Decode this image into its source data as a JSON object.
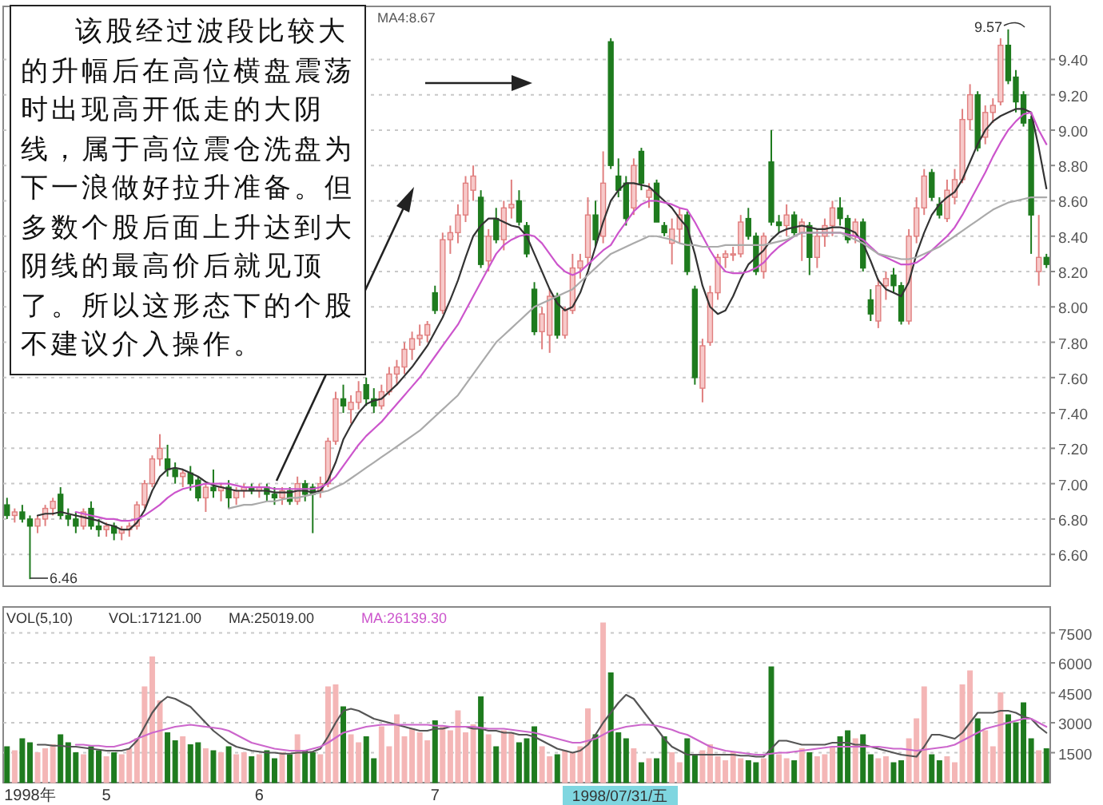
{
  "chart_data": [
    {
      "type": "candlestick",
      "categories": [
        null,
        null,
        null,
        null,
        null,
        null,
        null,
        null,
        null,
        null,
        null,
        null,
        null,
        null,
        null,
        null,
        null,
        null,
        null,
        null,
        null,
        null,
        null,
        null,
        null,
        null,
        null,
        null,
        null,
        null,
        null,
        null,
        null,
        null,
        null,
        null,
        null,
        null,
        null,
        null,
        null,
        null,
        null,
        null,
        null,
        null,
        null,
        null,
        null,
        null,
        null,
        null,
        null,
        null,
        null,
        null,
        null,
        null,
        null,
        null,
        null,
        null,
        null,
        null,
        null,
        null,
        null,
        null,
        null,
        null,
        null,
        null,
        null,
        null,
        null,
        null,
        null,
        null,
        null,
        null,
        null,
        null,
        null,
        null,
        null,
        null,
        null,
        null,
        null,
        null,
        null,
        null,
        null,
        null,
        null,
        null,
        null,
        null,
        null,
        null,
        null,
        null,
        null,
        null,
        null,
        null,
        null,
        null,
        null,
        null,
        null,
        null,
        null,
        null,
        null,
        null,
        null,
        null,
        null,
        null,
        null,
        null,
        null,
        null,
        null,
        null,
        null,
        null,
        null,
        null,
        null,
        null,
        null,
        null,
        null,
        null,
        null
      ],
      "ohlc": [
        [
          6.88,
          6.92,
          6.8,
          6.82
        ],
        [
          6.82,
          6.86,
          6.78,
          6.84
        ],
        [
          6.84,
          6.88,
          6.78,
          6.8
        ],
        [
          6.8,
          6.82,
          6.46,
          6.76
        ],
        [
          6.76,
          6.82,
          6.72,
          6.8
        ],
        [
          6.8,
          6.88,
          6.76,
          6.86
        ],
        [
          6.86,
          6.92,
          6.82,
          6.9
        ],
        [
          6.94,
          6.98,
          6.8,
          6.82
        ],
        [
          6.82,
          6.86,
          6.76,
          6.8
        ],
        [
          6.8,
          6.84,
          6.72,
          6.76
        ],
        [
          6.76,
          6.86,
          6.74,
          6.84
        ],
        [
          6.86,
          6.9,
          6.74,
          6.76
        ],
        [
          6.76,
          6.8,
          6.7,
          6.74
        ],
        [
          6.74,
          6.78,
          6.7,
          6.76
        ],
        [
          6.76,
          6.78,
          6.68,
          6.72
        ],
        [
          6.72,
          6.76,
          6.68,
          6.74
        ],
        [
          6.74,
          6.78,
          6.7,
          6.76
        ],
        [
          6.76,
          6.9,
          6.74,
          6.88
        ],
        [
          6.88,
          7.02,
          6.86,
          7.0
        ],
        [
          7.0,
          7.16,
          6.98,
          7.14
        ],
        [
          7.14,
          7.28,
          7.1,
          7.2
        ],
        [
          7.14,
          7.22,
          7.04,
          7.08
        ],
        [
          7.08,
          7.12,
          7.0,
          7.04
        ],
        [
          7.04,
          7.08,
          6.98,
          7.06
        ],
        [
          7.06,
          7.1,
          6.96,
          7.0
        ],
        [
          7.02,
          7.04,
          6.9,
          6.92
        ],
        [
          6.92,
          7.0,
          6.84,
          6.98
        ],
        [
          6.98,
          7.08,
          6.92,
          6.96
        ],
        [
          6.96,
          7.0,
          6.9,
          6.98
        ],
        [
          6.98,
          7.02,
          6.86,
          6.92
        ],
        [
          6.92,
          6.98,
          6.88,
          6.96
        ],
        [
          6.96,
          7.0,
          6.92,
          6.98
        ],
        [
          6.98,
          7.0,
          6.94,
          6.96
        ],
        [
          6.96,
          7.0,
          6.92,
          6.98
        ],
        [
          6.98,
          7.0,
          6.9,
          6.94
        ],
        [
          6.94,
          6.98,
          6.88,
          6.92
        ],
        [
          6.92,
          6.98,
          6.88,
          6.96
        ],
        [
          6.96,
          6.98,
          6.88,
          6.9
        ],
        [
          6.9,
          7.04,
          6.88,
          7.0
        ],
        [
          7.0,
          7.02,
          6.9,
          6.94
        ],
        [
          6.98,
          7.0,
          6.72,
          6.94
        ],
        [
          6.96,
          7.04,
          6.92,
          7.0
        ],
        [
          7.0,
          7.26,
          6.98,
          7.24
        ],
        [
          7.24,
          7.52,
          7.22,
          7.48
        ],
        [
          7.48,
          7.56,
          7.4,
          7.44
        ],
        [
          7.42,
          7.5,
          7.34,
          7.46
        ],
        [
          7.46,
          7.58,
          7.42,
          7.52
        ],
        [
          7.56,
          7.6,
          7.44,
          7.48
        ],
        [
          7.48,
          7.54,
          7.4,
          7.44
        ],
        [
          7.44,
          7.56,
          7.42,
          7.52
        ],
        [
          7.52,
          7.66,
          7.5,
          7.62
        ],
        [
          7.62,
          7.7,
          7.56,
          7.66
        ],
        [
          7.66,
          7.8,
          7.62,
          7.76
        ],
        [
          7.76,
          7.86,
          7.7,
          7.82
        ],
        [
          7.82,
          7.9,
          7.78,
          7.84
        ],
        [
          7.84,
          7.92,
          7.8,
          7.9
        ],
        [
          8.08,
          8.12,
          7.96,
          7.98
        ],
        [
          7.98,
          8.42,
          7.96,
          8.38
        ],
        [
          8.38,
          8.46,
          8.3,
          8.42
        ],
        [
          8.42,
          8.58,
          8.36,
          8.52
        ],
        [
          8.52,
          8.74,
          8.48,
          8.7
        ],
        [
          8.66,
          8.8,
          8.6,
          8.74
        ],
        [
          8.62,
          8.66,
          8.22,
          8.24
        ],
        [
          8.26,
          8.44,
          8.2,
          8.4
        ],
        [
          8.5,
          8.56,
          8.36,
          8.38
        ],
        [
          8.38,
          8.6,
          8.32,
          8.56
        ],
        [
          8.56,
          8.72,
          8.5,
          8.58
        ],
        [
          8.6,
          8.66,
          8.46,
          8.48
        ],
        [
          8.46,
          8.48,
          8.28,
          8.3
        ],
        [
          8.1,
          8.14,
          7.84,
          7.86
        ],
        [
          7.86,
          8.0,
          7.76,
          7.96
        ],
        [
          7.84,
          8.1,
          7.74,
          8.06
        ],
        [
          8.06,
          8.08,
          7.82,
          7.84
        ],
        [
          7.84,
          8.0,
          7.82,
          7.98
        ],
        [
          7.98,
          8.3,
          7.96,
          8.22
        ],
        [
          8.22,
          8.3,
          8.16,
          8.26
        ],
        [
          8.28,
          8.62,
          8.24,
          8.52
        ],
        [
          8.52,
          8.6,
          8.34,
          8.38
        ],
        [
          8.4,
          8.88,
          8.36,
          8.7
        ],
        [
          9.5,
          9.52,
          8.78,
          8.8
        ],
        [
          8.74,
          8.84,
          8.62,
          8.66
        ],
        [
          8.7,
          8.74,
          8.46,
          8.5
        ],
        [
          8.56,
          8.84,
          8.52,
          8.8
        ],
        [
          8.88,
          8.9,
          8.66,
          8.7
        ],
        [
          8.62,
          8.7,
          8.56,
          8.66
        ],
        [
          8.7,
          8.72,
          8.48,
          8.48
        ],
        [
          8.46,
          8.48,
          8.4,
          8.42
        ],
        [
          8.36,
          8.5,
          8.24,
          8.44
        ],
        [
          8.44,
          8.56,
          8.36,
          8.52
        ],
        [
          8.52,
          8.54,
          8.18,
          8.2
        ],
        [
          8.1,
          8.12,
          7.56,
          7.6
        ],
        [
          7.54,
          7.82,
          7.46,
          7.78
        ],
        [
          7.8,
          8.12,
          7.78,
          8.08
        ],
        [
          8.08,
          8.3,
          8.04,
          8.28
        ],
        [
          8.28,
          8.32,
          8.22,
          8.3
        ],
        [
          8.3,
          8.34,
          8.26,
          8.3
        ],
        [
          8.3,
          8.52,
          8.28,
          8.48
        ],
        [
          8.5,
          8.56,
          8.38,
          8.4
        ],
        [
          8.4,
          8.42,
          8.18,
          8.2
        ],
        [
          8.2,
          8.42,
          8.16,
          8.4
        ],
        [
          8.82,
          9.0,
          8.46,
          8.48
        ],
        [
          8.48,
          8.52,
          8.42,
          8.46
        ],
        [
          8.46,
          8.58,
          8.4,
          8.52
        ],
        [
          8.52,
          8.54,
          8.4,
          8.42
        ],
        [
          8.42,
          8.5,
          8.26,
          8.48
        ],
        [
          8.46,
          8.48,
          8.18,
          8.28
        ],
        [
          8.28,
          8.44,
          8.22,
          8.4
        ],
        [
          8.4,
          8.5,
          8.34,
          8.46
        ],
        [
          8.46,
          8.6,
          8.4,
          8.56
        ],
        [
          8.56,
          8.62,
          8.46,
          8.5
        ],
        [
          8.5,
          8.52,
          8.36,
          8.38
        ],
        [
          8.4,
          8.5,
          8.36,
          8.48
        ],
        [
          8.48,
          8.5,
          8.2,
          8.22
        ],
        [
          8.04,
          8.1,
          7.92,
          7.96
        ],
        [
          7.92,
          8.16,
          7.88,
          8.12
        ],
        [
          8.12,
          8.2,
          8.04,
          8.16
        ],
        [
          8.18,
          8.22,
          8.08,
          8.12
        ],
        [
          8.12,
          8.14,
          7.9,
          7.92
        ],
        [
          7.92,
          8.44,
          7.9,
          8.4
        ],
        [
          8.4,
          8.62,
          8.36,
          8.56
        ],
        [
          8.56,
          8.78,
          8.52,
          8.74
        ],
        [
          8.76,
          8.78,
          8.6,
          8.62
        ],
        [
          8.58,
          8.62,
          8.5,
          8.52
        ],
        [
          8.5,
          8.72,
          8.48,
          8.66
        ],
        [
          8.62,
          8.78,
          8.58,
          8.72
        ],
        [
          8.72,
          9.12,
          8.7,
          9.06
        ],
        [
          9.06,
          9.26,
          9.0,
          9.2
        ],
        [
          9.2,
          9.22,
          8.88,
          8.9
        ],
        [
          8.96,
          9.14,
          8.92,
          9.1
        ],
        [
          9.1,
          9.18,
          9.04,
          9.14
        ],
        [
          9.16,
          9.52,
          9.14,
          9.48
        ],
        [
          9.48,
          9.57,
          9.26,
          9.28
        ],
        [
          9.3,
          9.34,
          9.1,
          9.16
        ],
        [
          9.2,
          9.22,
          9.02,
          9.04
        ],
        [
          9.06,
          9.08,
          8.3,
          8.52
        ],
        [
          8.2,
          8.52,
          8.12,
          8.28
        ],
        [
          8.28,
          8.3,
          8.22,
          8.24
        ]
      ],
      "series": [
        {
          "type": "line",
          "color": "#333333",
          "values": [
            null,
            null,
            null,
            null,
            6.82,
            6.83,
            6.83,
            6.84,
            6.83,
            6.82,
            6.81,
            6.8,
            6.79,
            6.77,
            6.76,
            6.74,
            6.74,
            6.78,
            6.85,
            6.96,
            7.04,
            7.08,
            7.09,
            7.08,
            7.06,
            7.04,
            7.01,
            6.99,
            6.98,
            6.97,
            6.96,
            6.96,
            6.96,
            6.96,
            6.96,
            6.95,
            6.95,
            6.95,
            6.96,
            6.96,
            6.95,
            6.96,
            7.02,
            7.12,
            7.25,
            7.33,
            7.4,
            7.45,
            7.47,
            7.48,
            7.52,
            7.56,
            7.61,
            7.66,
            7.72,
            7.78,
            7.86,
            7.94,
            8.04,
            8.15,
            8.28,
            8.4,
            8.46,
            8.5,
            8.5,
            8.48,
            8.46,
            8.45,
            8.4,
            8.3,
            8.2,
            8.1,
            8.02,
            7.98,
            8.0,
            8.08,
            8.2,
            8.34,
            8.48,
            8.6,
            8.66,
            8.7,
            8.7,
            8.69,
            8.68,
            8.64,
            8.6,
            8.56,
            8.5,
            8.45,
            8.3,
            8.12,
            8.0,
            7.96,
            7.98,
            8.06,
            8.16,
            8.24,
            8.28,
            8.32,
            8.38,
            8.42,
            8.44,
            8.45,
            8.46,
            8.45,
            8.44,
            8.44,
            8.45,
            8.45,
            8.44,
            8.42,
            8.36,
            8.26,
            8.15,
            8.1,
            8.08,
            8.06,
            8.14,
            8.3,
            8.42,
            8.52,
            8.58,
            8.62,
            8.65,
            8.72,
            8.82,
            8.92,
            9.0,
            9.05,
            9.08,
            9.1,
            9.12,
            9.12,
            9.1,
            8.9,
            8.67
          ]
        },
        {
          "type": "line",
          "color": "#cc55cc",
          "values": [
            null,
            null,
            null,
            null,
            null,
            null,
            null,
            null,
            null,
            6.84,
            6.83,
            6.82,
            6.81,
            6.8,
            6.8,
            6.79,
            6.79,
            6.8,
            6.82,
            6.85,
            6.88,
            6.92,
            6.95,
            6.97,
            6.98,
            6.99,
            7.0,
            7.0,
            7.0,
            7.0,
            6.99,
            6.98,
            6.98,
            6.98,
            6.98,
            6.97,
            6.97,
            6.97,
            6.97,
            6.97,
            6.97,
            6.98,
            7.0,
            7.04,
            7.1,
            7.16,
            7.22,
            7.27,
            7.31,
            7.35,
            7.4,
            7.45,
            7.5,
            7.55,
            7.6,
            7.66,
            7.72,
            7.78,
            7.84,
            7.9,
            7.98,
            8.06,
            8.14,
            8.22,
            8.3,
            8.35,
            8.38,
            8.4,
            8.41,
            8.4,
            8.36,
            8.3,
            8.24,
            8.2,
            8.18,
            8.2,
            8.24,
            8.28,
            8.32,
            8.35,
            8.42,
            8.48,
            8.54,
            8.58,
            8.6,
            8.6,
            8.59,
            8.58,
            8.56,
            8.55,
            8.48,
            8.4,
            8.32,
            8.25,
            8.2,
            8.19,
            8.19,
            8.2,
            8.22,
            8.25,
            8.3,
            8.34,
            8.37,
            8.4,
            8.42,
            8.42,
            8.42,
            8.42,
            8.42,
            8.42,
            8.41,
            8.4,
            8.38,
            8.34,
            8.3,
            8.28,
            8.26,
            8.24,
            8.24,
            8.25,
            8.28,
            8.32,
            8.36,
            8.4,
            8.45,
            8.52,
            8.6,
            8.68,
            8.76,
            8.85,
            8.93,
            9.0,
            9.05,
            9.09,
            9.1,
            9.0,
            8.92
          ]
        },
        {
          "type": "line",
          "color": "#aaaaaa",
          "values": [
            null,
            null,
            null,
            null,
            null,
            null,
            null,
            null,
            null,
            null,
            null,
            null,
            null,
            null,
            null,
            null,
            null,
            null,
            null,
            null,
            null,
            null,
            null,
            null,
            null,
            null,
            null,
            null,
            null,
            6.86,
            6.87,
            6.88,
            6.88,
            6.89,
            6.9,
            6.9,
            6.91,
            6.92,
            6.92,
            6.93,
            6.94,
            6.95,
            6.96,
            6.98,
            7.0,
            7.03,
            7.06,
            7.09,
            7.12,
            7.15,
            7.18,
            7.21,
            7.24,
            7.27,
            7.3,
            7.34,
            7.38,
            7.42,
            7.46,
            7.5,
            7.56,
            7.62,
            7.68,
            7.74,
            7.8,
            7.84,
            7.88,
            7.92,
            7.96,
            8.0,
            8.02,
            8.04,
            8.06,
            8.08,
            8.1,
            8.14,
            8.18,
            8.22,
            8.26,
            8.3,
            8.32,
            8.34,
            8.36,
            8.38,
            8.4,
            8.4,
            8.39,
            8.38,
            8.36,
            8.35,
            8.35,
            8.34,
            8.34,
            8.34,
            8.35,
            8.35,
            8.35,
            8.35,
            8.35,
            8.35,
            8.36,
            8.37,
            8.38,
            8.4,
            8.42,
            8.42,
            8.42,
            8.42,
            8.42,
            8.42,
            8.4,
            8.38,
            8.36,
            8.33,
            8.3,
            8.29,
            8.28,
            8.27,
            8.27,
            8.28,
            8.3,
            8.32,
            8.34,
            8.37,
            8.4,
            8.43,
            8.46,
            8.49,
            8.52,
            8.55,
            8.57,
            8.59,
            8.6,
            8.61,
            8.62,
            8.62,
            8.62
          ]
        }
      ],
      "ylim": [
        6.42,
        9.7
      ],
      "yticks": [
        {
          "value": 6.6,
          "label": "6.60"
        },
        {
          "value": 6.8,
          "label": "6.80"
        },
        {
          "value": 7.0,
          "label": "7.00"
        },
        {
          "value": 7.2,
          "label": "7.20"
        },
        {
          "value": 7.4,
          "label": "7.40"
        },
        {
          "value": 7.6,
          "label": "7.60"
        },
        {
          "value": 7.8,
          "label": "7.80"
        },
        {
          "value": 8.0,
          "label": "8.00"
        },
        {
          "value": 8.2,
          "label": "8.20"
        },
        {
          "value": 8.4,
          "label": "8.40"
        },
        {
          "value": 8.6,
          "label": "8.60"
        },
        {
          "value": 8.8,
          "label": "8.80"
        },
        {
          "value": 9.0,
          "label": "9.00"
        },
        {
          "value": 9.2,
          "label": "9.20"
        },
        {
          "value": 9.4,
          "label": "9.40"
        }
      ],
      "grid": "y",
      "tick_labels": "y",
      "annotations": [
        "该股经过波段比较大的升幅后在高位横盘震荡时出现高开低走的大阴线，属于高位震仓洗盘为下一浪做好拉升准备。但多数个股后面上升达到大阴线的最高价后就见顶了。所以这形态下的个股不建议介入操作。",
        "MA4:8.67",
        "9.57",
        "6.46"
      ]
    },
    {
      "type": "bar",
      "categories": [
        null,
        null,
        null,
        "1998年",
        null,
        null,
        null,
        null,
        null,
        null,
        null,
        null,
        null,
        "5",
        null,
        null,
        null,
        null,
        null,
        null,
        null,
        null,
        null,
        null,
        null,
        null,
        null,
        null,
        null,
        null,
        null,
        null,
        null,
        "6",
        null,
        null,
        null,
        null,
        null,
        null,
        null,
        null,
        null,
        null,
        null,
        null,
        null,
        null,
        null,
        null,
        null,
        null,
        null,
        null,
        null,
        null,
        "7",
        null,
        null,
        null,
        null,
        null,
        null,
        null,
        null,
        null,
        null,
        null,
        null,
        null,
        null,
        null,
        null,
        null,
        null,
        null,
        null,
        null,
        null,
        null,
        null,
        null,
        null,
        null,
        null,
        null,
        null,
        null,
        null,
        null,
        null,
        null,
        null,
        null,
        null,
        null,
        null,
        null,
        null,
        null,
        null,
        null,
        null,
        null,
        null,
        null,
        null,
        null,
        null,
        null,
        null,
        null,
        null,
        null,
        null,
        null,
        null,
        null,
        null,
        null,
        null,
        null,
        null,
        null,
        null,
        null,
        null,
        null,
        null,
        null,
        null,
        null,
        null,
        null,
        null,
        null,
        null
      ],
      "values": [
        1800,
        1600,
        2200,
        2000,
        1500,
        1700,
        1900,
        2400,
        2000,
        1500,
        1400,
        1800,
        1600,
        1300,
        1500,
        1400,
        1700,
        2200,
        4800,
        6300,
        4100,
        2500,
        2100,
        2300,
        1900,
        2000,
        1700,
        1600,
        1500,
        1800,
        1400,
        1500,
        1300,
        1400,
        1600,
        1200,
        1500,
        1400,
        2400,
        1600,
        1500,
        1400,
        4800,
        4900,
        3800,
        2400,
        2000,
        2300,
        1200,
        2800,
        1800,
        3400,
        2300,
        2700,
        2500,
        2100,
        3100,
        2800,
        2600,
        3600,
        2500,
        2900,
        4300,
        2400,
        1800,
        2600,
        2500,
        2000,
        2200,
        2800,
        1800,
        1300,
        1400,
        1600,
        1500,
        1800,
        3700,
        2400,
        8000,
        5500,
        2500,
        2200,
        1700,
        1000,
        1200,
        1200,
        2300,
        1500,
        1000,
        2200,
        1400,
        1600,
        1900,
        1300,
        1100,
        1500,
        1200,
        1100,
        1000,
        1200,
        5800,
        1400,
        1200,
        1100,
        1700,
        1500,
        1300,
        1400,
        1800,
        2300,
        2600,
        2200,
        2400,
        1400,
        1200,
        1300,
        1000,
        1100,
        2200,
        3200,
        4800,
        1400,
        1100,
        1300,
        1000,
        4900,
        5600,
        3200,
        2600,
        1800,
        4500,
        3400,
        3000,
        4000,
        2200,
        1600,
        1700
      ],
      "colors": [
        "#1e7b1e",
        "#f4b6b6",
        "#1e7b1e",
        "#1e7b1e",
        "#f4b6b6",
        "#f4b6b6",
        "#f4b6b6",
        "#1e7b1e",
        "#1e7b1e",
        "#1e7b1e",
        "#f4b6b6",
        "#1e7b1e",
        "#1e7b1e",
        "#f4b6b6",
        "#1e7b1e",
        "#f4b6b6",
        "#f4b6b6",
        "#f4b6b6",
        "#f4b6b6",
        "#f4b6b6",
        "#f4b6b6",
        "#1e7b1e",
        "#1e7b1e",
        "#f4b6b6",
        "#1e7b1e",
        "#1e7b1e",
        "#f4b6b6",
        "#1e7b1e",
        "#f4b6b6",
        "#1e7b1e",
        "#f4b6b6",
        "#f4b6b6",
        "#1e7b1e",
        "#f4b6b6",
        "#1e7b1e",
        "#1e7b1e",
        "#f4b6b6",
        "#1e7b1e",
        "#f4b6b6",
        "#1e7b1e",
        "#1e7b1e",
        "#f4b6b6",
        "#f4b6b6",
        "#f4b6b6",
        "#1e7b1e",
        "#f4b6b6",
        "#f4b6b6",
        "#1e7b1e",
        "#1e7b1e",
        "#f4b6b6",
        "#f4b6b6",
        "#f4b6b6",
        "#f4b6b6",
        "#f4b6b6",
        "#f4b6b6",
        "#f4b6b6",
        "#1e7b1e",
        "#f4b6b6",
        "#f4b6b6",
        "#f4b6b6",
        "#f4b6b6",
        "#f4b6b6",
        "#1e7b1e",
        "#f4b6b6",
        "#1e7b1e",
        "#f4b6b6",
        "#f4b6b6",
        "#1e7b1e",
        "#1e7b1e",
        "#1e7b1e",
        "#f4b6b6",
        "#f4b6b6",
        "#1e7b1e",
        "#f4b6b6",
        "#f4b6b6",
        "#f4b6b6",
        "#f4b6b6",
        "#1e7b1e",
        "#f4b6b6",
        "#1e7b1e",
        "#1e7b1e",
        "#1e7b1e",
        "#f4b6b6",
        "#1e7b1e",
        "#f4b6b6",
        "#1e7b1e",
        "#1e7b1e",
        "#f4b6b6",
        "#f4b6b6",
        "#1e7b1e",
        "#1e7b1e",
        "#f4b6b6",
        "#f4b6b6",
        "#f4b6b6",
        "#f4b6b6",
        "#f4b6b6",
        "#f4b6b6",
        "#1e7b1e",
        "#1e7b1e",
        "#f4b6b6",
        "#1e7b1e",
        "#f4b6b6",
        "#f4b6b6",
        "#1e7b1e",
        "#f4b6b6",
        "#1e7b1e",
        "#f4b6b6",
        "#f4b6b6",
        "#f4b6b6",
        "#1e7b1e",
        "#1e7b1e",
        "#f4b6b6",
        "#1e7b1e",
        "#1e7b1e",
        "#f4b6b6",
        "#f4b6b6",
        "#1e7b1e",
        "#1e7b1e",
        "#f4b6b6",
        "#f4b6b6",
        "#f4b6b6",
        "#1e7b1e",
        "#1e7b1e",
        "#f4b6b6",
        "#f4b6b6",
        "#f4b6b6",
        "#f4b6b6",
        "#1e7b1e",
        "#f4b6b6",
        "#f4b6b6",
        "#f4b6b6",
        "#1e7b1e",
        "#1e7b1e",
        "#1e7b1e",
        "#1e7b1e",
        "#f4b6b6",
        "#1e7b1e"
      ],
      "series": [
        {
          "type": "line",
          "color": "#555555",
          "values": [
            null,
            null,
            null,
            null,
            1900,
            1900,
            1850,
            1850,
            1800,
            1800,
            1750,
            1700,
            1650,
            1600,
            1600,
            1600,
            1700,
            2100,
            2800,
            3500,
            4000,
            4300,
            4200,
            4000,
            3800,
            3400,
            3000,
            2600,
            2300,
            2000,
            1800,
            1700,
            1600,
            1550,
            1500,
            1500,
            1450,
            1450,
            1500,
            1500,
            1550,
            1700,
            2300,
            3000,
            3600,
            3700,
            3600,
            3400,
            3200,
            3100,
            3000,
            2900,
            2800,
            2700,
            2600,
            2600,
            2700,
            2700,
            2800,
            2800,
            2800,
            2700,
            2700,
            2600,
            2600,
            2500,
            2500,
            2400,
            2400,
            2300,
            2100,
            1900,
            1700,
            1600,
            1500,
            1600,
            1900,
            2400,
            3000,
            3500,
            4000,
            4400,
            4200,
            3700,
            3200,
            2700,
            2200,
            1800,
            1600,
            1400,
            1400,
            1400,
            1400,
            1400,
            1400,
            1400,
            1350,
            1350,
            1300,
            1300,
            1700,
            2100,
            2100,
            2000,
            1900,
            1900,
            1900,
            1900,
            2000,
            2000,
            2000,
            1900,
            1900,
            1800,
            1700,
            1600,
            1500,
            1400,
            1350,
            1300,
            1800,
            2400,
            2400,
            2300,
            2200,
            2500,
            3000,
            3500,
            3500,
            3500,
            3600,
            3600,
            3500,
            3300,
            3200,
            2800,
            2500
          ]
        },
        {
          "type": "line",
          "color": "#cc66cc",
          "values": [
            null,
            null,
            null,
            null,
            null,
            null,
            null,
            null,
            null,
            1900,
            1900,
            1850,
            1850,
            1800,
            1800,
            1900,
            2000,
            2200,
            2350,
            2500,
            2600,
            2700,
            2800,
            2850,
            2900,
            2850,
            2800,
            2750,
            2700,
            2600,
            2400,
            2200,
            2000,
            1900,
            1800,
            1700,
            1650,
            1600,
            1600,
            1600,
            1700,
            1800,
            2000,
            2250,
            2500,
            2600,
            2700,
            2800,
            2850,
            2900,
            2900,
            2900,
            2900,
            2900,
            2900,
            2900,
            2850,
            2850,
            2800,
            2800,
            2800,
            2800,
            2750,
            2700,
            2700,
            2700,
            2650,
            2600,
            2550,
            2500,
            2400,
            2300,
            2200,
            2100,
            2000,
            2000,
            2100,
            2200,
            2400,
            2600,
            2700,
            2800,
            2850,
            2900,
            2900,
            2850,
            2750,
            2650,
            2500,
            2400,
            2200,
            2000,
            1800,
            1700,
            1600,
            1550,
            1500,
            1450,
            1400,
            1400,
            1450,
            1500,
            1500,
            1550,
            1600,
            1650,
            1700,
            1750,
            1800,
            1800,
            1800,
            1800,
            1800,
            1800,
            1800,
            1750,
            1700,
            1700,
            1650,
            1600,
            1650,
            1700,
            1750,
            1800,
            1900,
            2100,
            2300,
            2500,
            2700,
            2800,
            2900,
            3000,
            3100,
            3200,
            3200,
            3000,
            2800
          ]
        }
      ],
      "ylim": [
        0,
        8800
      ],
      "yticks": [
        1500,
        3000,
        4500,
        6000,
        7500
      ],
      "grid": "y",
      "annotations": [
        "VOL(5,10)",
        "VOL:17121.00",
        "MA:25019.00",
        "MA:26139.30",
        "1998/07/31/五"
      ]
    }
  ]
}
